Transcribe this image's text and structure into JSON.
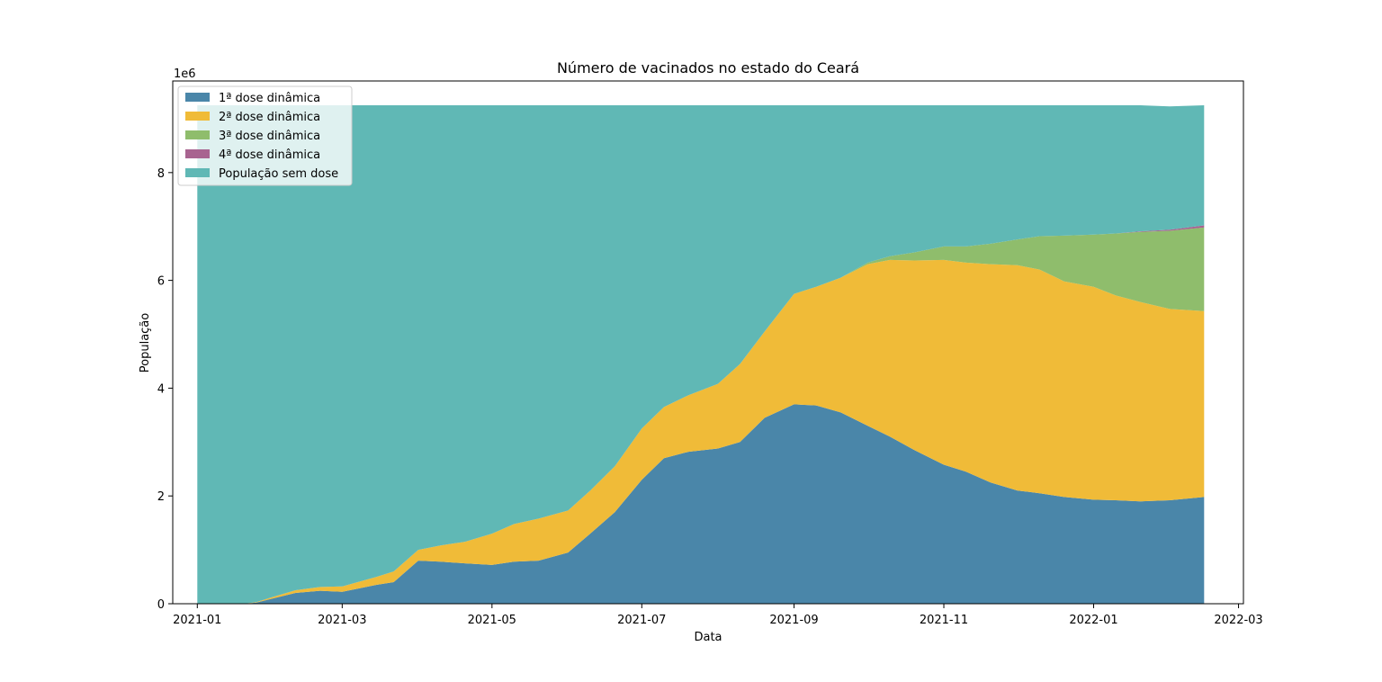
{
  "chart_data": {
    "type": "area",
    "stacked": true,
    "title": "Número de vacinados no estado do Ceará",
    "xlabel": "Data",
    "ylabel": "População",
    "y_multiplier_label": "1e6",
    "x_axis": "date",
    "xlim": [
      "2020-12-22",
      "2022-03-03"
    ],
    "ylim": [
      0,
      9.7
    ],
    "x_ticks": [
      "2021-01",
      "2021-03",
      "2021-05",
      "2021-07",
      "2021-09",
      "2021-11",
      "2022-01",
      "2022-03"
    ],
    "y_ticks": [
      0,
      2,
      4,
      6,
      8
    ],
    "y_tick_labels": [
      "0",
      "2",
      "4",
      "6",
      "8"
    ],
    "grid": false,
    "legend_position": "top-left",
    "x": [
      "2021-01-01",
      "2021-01-20",
      "2021-01-25",
      "2021-02-01",
      "2021-02-10",
      "2021-02-20",
      "2021-03-01",
      "2021-03-15",
      "2021-03-22",
      "2021-04-01",
      "2021-04-10",
      "2021-04-20",
      "2021-05-01",
      "2021-05-10",
      "2021-05-20",
      "2021-06-01",
      "2021-06-10",
      "2021-06-20",
      "2021-07-01",
      "2021-07-10",
      "2021-07-20",
      "2021-08-01",
      "2021-08-10",
      "2021-08-20",
      "2021-09-01",
      "2021-09-10",
      "2021-09-20",
      "2021-10-01",
      "2021-10-10",
      "2021-10-20",
      "2021-11-01",
      "2021-11-10",
      "2021-11-20",
      "2021-12-01",
      "2021-12-10",
      "2021-12-20",
      "2022-01-01",
      "2022-01-10",
      "2022-01-20",
      "2022-02-01",
      "2022-02-15"
    ],
    "series": [
      {
        "name": "1ª dose dinâmica",
        "color": "#4a86a9",
        "values": [
          0,
          0,
          0.02,
          0.1,
          0.2,
          0.24,
          0.22,
          0.35,
          0.4,
          0.8,
          0.78,
          0.75,
          0.72,
          0.78,
          0.8,
          0.95,
          1.3,
          1.7,
          2.3,
          2.7,
          2.82,
          2.88,
          3.0,
          3.45,
          3.7,
          3.68,
          3.55,
          3.3,
          3.1,
          2.85,
          2.58,
          2.45,
          2.25,
          2.1,
          2.05,
          1.98,
          1.93,
          1.92,
          1.9,
          1.92,
          1.98
        ]
      },
      {
        "name": "2ª dose dinâmica",
        "color": "#f0bb38",
        "values": [
          0,
          0,
          0.01,
          0.03,
          0.05,
          0.07,
          0.1,
          0.15,
          0.2,
          0.2,
          0.3,
          0.4,
          0.58,
          0.7,
          0.78,
          0.78,
          0.8,
          0.85,
          0.95,
          0.95,
          1.05,
          1.2,
          1.45,
          1.6,
          2.05,
          2.2,
          2.5,
          3.0,
          3.28,
          3.52,
          3.8,
          3.88,
          4.05,
          4.18,
          4.15,
          4.0,
          3.95,
          3.8,
          3.7,
          3.55,
          3.45
        ]
      },
      {
        "name": "3ª dose dinâmica",
        "color": "#8fbd6c",
        "values": [
          0,
          0,
          0,
          0,
          0,
          0,
          0,
          0,
          0,
          0,
          0,
          0,
          0,
          0,
          0,
          0,
          0,
          0,
          0,
          0,
          0,
          0,
          0,
          0,
          0,
          0,
          0,
          0.03,
          0.07,
          0.15,
          0.25,
          0.3,
          0.38,
          0.48,
          0.62,
          0.85,
          0.97,
          1.15,
          1.3,
          1.45,
          1.55
        ]
      },
      {
        "name": "4ª dose dinâmica",
        "color": "#a86490",
        "values": [
          0,
          0,
          0,
          0,
          0,
          0,
          0,
          0,
          0,
          0,
          0,
          0,
          0,
          0,
          0,
          0,
          0,
          0,
          0,
          0,
          0,
          0,
          0,
          0,
          0,
          0,
          0,
          0,
          0,
          0,
          0,
          0,
          0,
          0,
          0,
          0,
          0,
          0,
          0.01,
          0.02,
          0.04
        ]
      },
      {
        "name": "População sem dose",
        "color": "#60b8b5",
        "values": [
          9.25,
          9.25,
          9.22,
          9.12,
          9.0,
          8.94,
          8.93,
          8.75,
          8.65,
          8.25,
          8.17,
          8.1,
          7.95,
          7.77,
          7.67,
          7.52,
          7.15,
          6.7,
          6.0,
          5.6,
          5.38,
          5.17,
          4.8,
          4.2,
          3.5,
          3.37,
          3.2,
          2.92,
          2.8,
          2.73,
          2.62,
          2.62,
          2.57,
          2.49,
          2.43,
          2.42,
          2.4,
          2.38,
          2.34,
          2.29,
          2.23
        ]
      }
    ]
  }
}
